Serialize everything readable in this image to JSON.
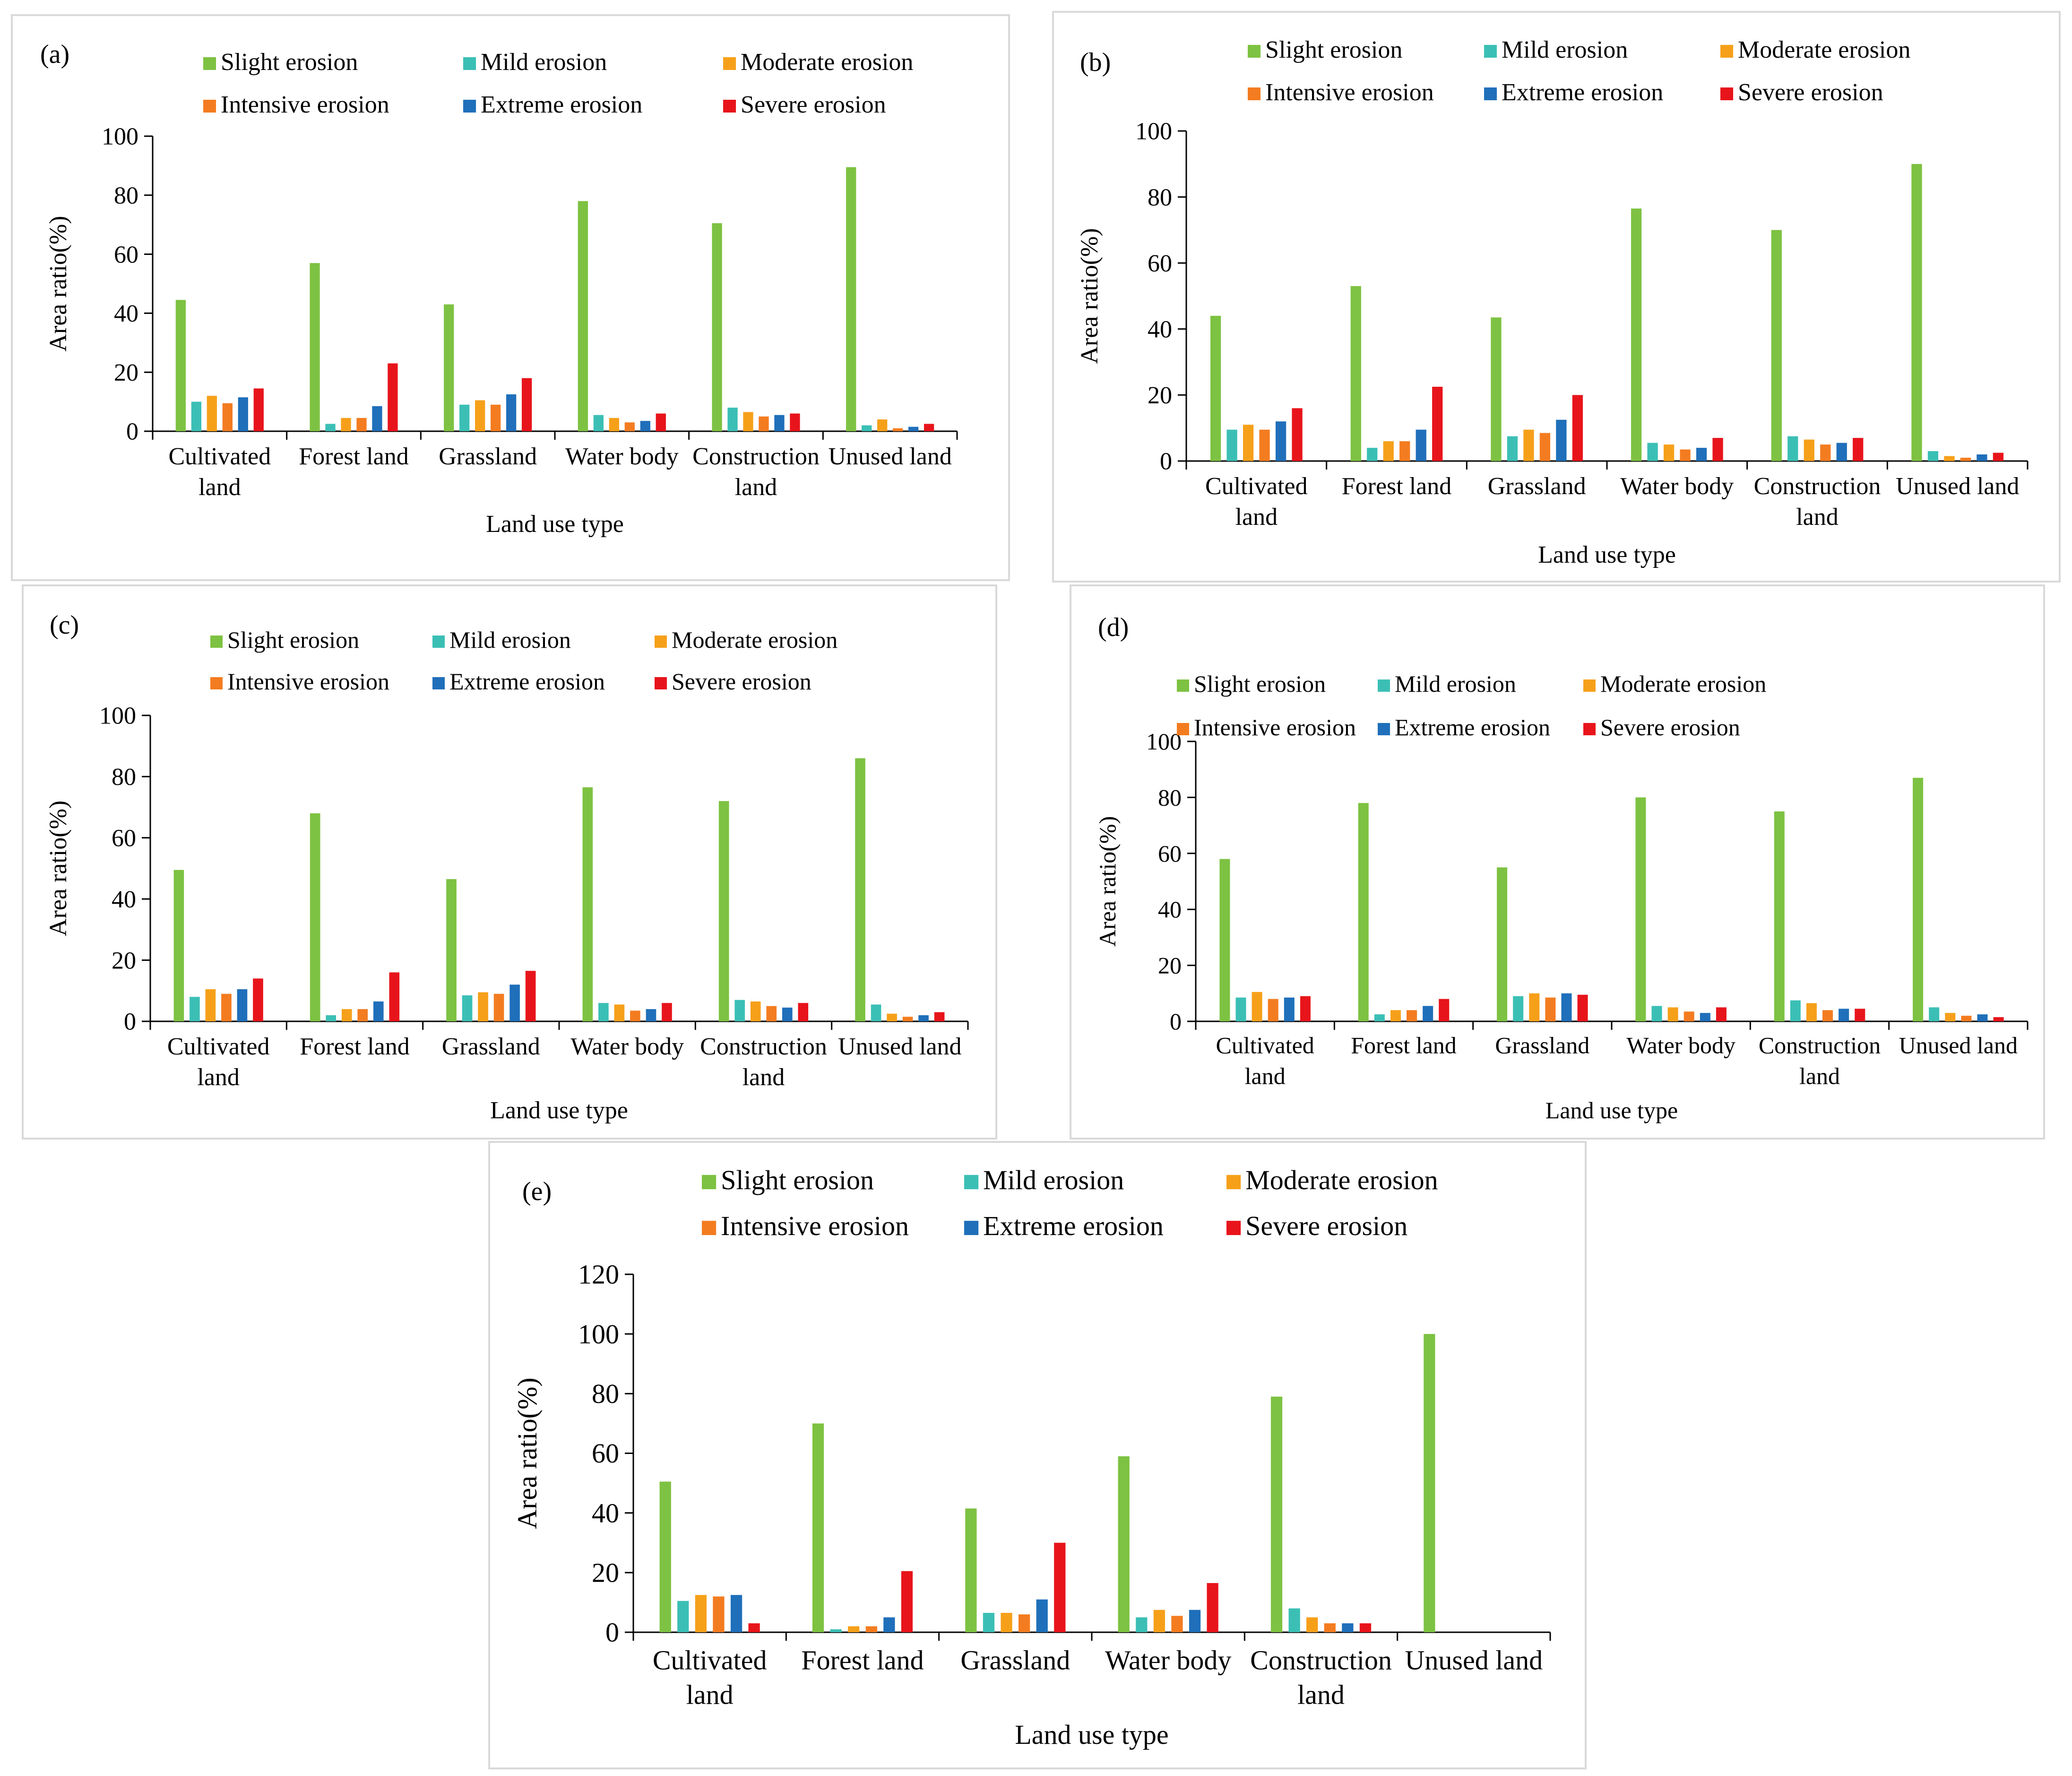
{
  "figure": {
    "legend_colors": [
      "#7dc242",
      "#3bbfb5",
      "#f6a01a",
      "#f47c20",
      "#1f6fba",
      "#e8141b"
    ]
  },
  "chart_data": [
    {
      "type": "bar",
      "panel_label": "(a)",
      "categories": [
        "Cultivated\nland",
        "Forest land",
        "Grassland",
        "Water body",
        "Construction\nland",
        "Unused land"
      ],
      "series": [
        {
          "name": "Slight erosion",
          "values": [
            44.5,
            57,
            43,
            78,
            70.5,
            89.5
          ]
        },
        {
          "name": "Mild erosion",
          "values": [
            10,
            2.5,
            9,
            5.5,
            8,
            2
          ]
        },
        {
          "name": "Moderate erosion",
          "values": [
            12,
            4.5,
            10.5,
            4.5,
            6.5,
            4
          ]
        },
        {
          "name": "Intensive erosion",
          "values": [
            9.5,
            4.5,
            9,
            3,
            5,
            1
          ]
        },
        {
          "name": "Extreme erosion",
          "values": [
            11.5,
            8.5,
            12.5,
            3.5,
            5.5,
            1.5
          ]
        },
        {
          "name": "Severe erosion",
          "values": [
            14.5,
            23,
            18,
            6,
            6,
            2.5
          ]
        }
      ],
      "xlabel": "Land use type",
      "ylabel": "Area ratio(%)",
      "ylim": [
        0,
        100
      ],
      "yticks": [
        "0",
        "20",
        "40",
        "60",
        "80",
        "100"
      ],
      "legend_position": "top"
    },
    {
      "type": "bar",
      "panel_label": "(b)",
      "categories": [
        "Cultivated\nland",
        "Forest land",
        "Grassland",
        "Water body",
        "Construction\nland",
        "Unused land"
      ],
      "series": [
        {
          "name": "Slight erosion",
          "values": [
            44,
            53,
            43.5,
            76.5,
            70,
            90
          ]
        },
        {
          "name": "Mild erosion",
          "values": [
            9.5,
            4,
            7.5,
            5.5,
            7.5,
            3
          ]
        },
        {
          "name": "Moderate erosion",
          "values": [
            11,
            6,
            9.5,
            5,
            6.5,
            1.5
          ]
        },
        {
          "name": "Intensive erosion",
          "values": [
            9.5,
            6,
            8.5,
            3.5,
            5,
            1
          ]
        },
        {
          "name": "Extreme erosion",
          "values": [
            12,
            9.5,
            12.5,
            4,
            5.5,
            2
          ]
        },
        {
          "name": "Severe erosion",
          "values": [
            16,
            22.5,
            20,
            7,
            7,
            2.5
          ]
        }
      ],
      "xlabel": "Land use type",
      "ylabel": "Area ratio(%)",
      "ylim": [
        0,
        100
      ],
      "yticks": [
        "0",
        "20",
        "40",
        "60",
        "80",
        "100"
      ],
      "legend_position": "top"
    },
    {
      "type": "bar",
      "panel_label": "(c)",
      "categories": [
        "Cultivated\nland",
        "Forest land",
        "Grassland",
        "Water body",
        "Construction\nland",
        "Unused land"
      ],
      "series": [
        {
          "name": "Slight erosion",
          "values": [
            49.5,
            68,
            46.5,
            76.5,
            72,
            86
          ]
        },
        {
          "name": "Mild erosion",
          "values": [
            8,
            2,
            8.5,
            6,
            7,
            5.5
          ]
        },
        {
          "name": "Moderate erosion",
          "values": [
            10.5,
            4,
            9.5,
            5.5,
            6.5,
            2.5
          ]
        },
        {
          "name": "Intensive erosion",
          "values": [
            9,
            4,
            9,
            3.5,
            5,
            1.5
          ]
        },
        {
          "name": "Extreme erosion",
          "values": [
            10.5,
            6.5,
            12,
            4,
            4.5,
            2
          ]
        },
        {
          "name": "Severe erosion",
          "values": [
            14,
            16,
            16.5,
            6,
            6,
            3
          ]
        }
      ],
      "xlabel": "Land use type",
      "ylabel": "Area ratio(%)",
      "ylim": [
        0,
        100
      ],
      "yticks": [
        "0",
        "20",
        "40",
        "60",
        "80",
        "100"
      ],
      "legend_position": "top"
    },
    {
      "type": "bar",
      "panel_label": "(d)",
      "categories": [
        "Cultivated\nland",
        "Forest land",
        "Grassland",
        "Water body",
        "Construction\nland",
        "Unused land"
      ],
      "series": [
        {
          "name": "Slight erosion",
          "values": [
            58,
            78,
            55,
            80,
            75,
            87
          ]
        },
        {
          "name": "Mild erosion",
          "values": [
            8.5,
            2.5,
            9,
            5.5,
            7.5,
            5
          ]
        },
        {
          "name": "Moderate erosion",
          "values": [
            10.5,
            4,
            10,
            5,
            6.5,
            3
          ]
        },
        {
          "name": "Intensive erosion",
          "values": [
            8,
            4,
            8.5,
            3.5,
            4,
            2
          ]
        },
        {
          "name": "Extreme erosion",
          "values": [
            8.5,
            5.5,
            10,
            3,
            4.5,
            2.5
          ]
        },
        {
          "name": "Severe erosion",
          "values": [
            9,
            8,
            9.5,
            5,
            4.5,
            1.5
          ]
        }
      ],
      "xlabel": "Land use type",
      "ylabel": "Area ratio(%)",
      "ylim": [
        0,
        100
      ],
      "yticks": [
        "0",
        "20",
        "40",
        "60",
        "80",
        "100"
      ],
      "legend_position": "top"
    },
    {
      "type": "bar",
      "panel_label": "(e)",
      "categories": [
        "Cultivated\nland",
        "Forest land",
        "Grassland",
        "Water body",
        "Construction\nland",
        "Unused land"
      ],
      "series": [
        {
          "name": "Slight erosion",
          "values": [
            50.5,
            70,
            41.5,
            59,
            79,
            100
          ]
        },
        {
          "name": "Mild erosion",
          "values": [
            10.5,
            1,
            6.5,
            5,
            8,
            0
          ]
        },
        {
          "name": "Moderate erosion",
          "values": [
            12.5,
            2,
            6.5,
            7.5,
            5,
            0
          ]
        },
        {
          "name": "Intensive erosion",
          "values": [
            12,
            2,
            6,
            5.5,
            3,
            0
          ]
        },
        {
          "name": "Extreme erosion",
          "values": [
            12.5,
            5,
            11,
            7.5,
            3,
            0
          ]
        },
        {
          "name": "Severe erosion",
          "values": [
            3,
            20.5,
            30,
            16.5,
            3,
            0
          ]
        }
      ],
      "xlabel": "Land use type",
      "ylabel": "Area ratio(%)",
      "ylim": [
        0,
        120
      ],
      "yticks": [
        "0",
        "20",
        "40",
        "60",
        "80",
        "100",
        "120"
      ],
      "legend_position": "top"
    }
  ]
}
